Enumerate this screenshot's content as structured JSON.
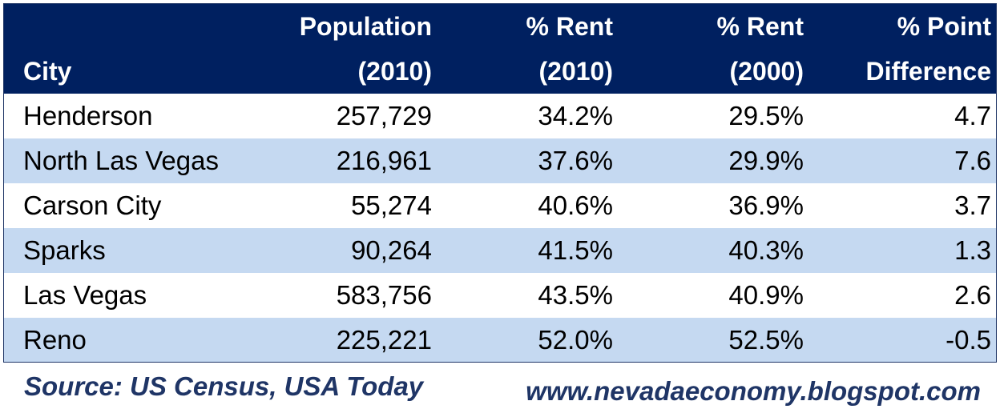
{
  "chart_data": {
    "type": "table",
    "columns": [
      {
        "line1": "",
        "line2": "City"
      },
      {
        "line1": "Population",
        "line2": "(2010)"
      },
      {
        "line1": "% Rent",
        "line2": "(2010)"
      },
      {
        "line1": "% Rent",
        "line2": "(2000)"
      },
      {
        "line1": "% Point",
        "line2": "Difference"
      }
    ],
    "rows": [
      [
        "Henderson",
        "257,729",
        "34.2%",
        "29.5%",
        "4.7"
      ],
      [
        "North Las Vegas",
        "216,961",
        "37.6%",
        "29.9%",
        "7.6"
      ],
      [
        "Carson City",
        "55,274",
        "40.6%",
        "36.9%",
        "3.7"
      ],
      [
        "Sparks",
        "90,264",
        "41.5%",
        "40.3%",
        "1.3"
      ],
      [
        "Las Vegas",
        "583,756",
        "43.5%",
        "40.9%",
        "2.6"
      ],
      [
        "Reno",
        "225,221",
        "52.0%",
        "52.5%",
        "-0.5"
      ]
    ]
  },
  "footer": {
    "source": "Source: US Census, USA Today",
    "website": "www.nevadaeconomy.blogspot.com"
  },
  "colors": {
    "header_bg": "#002060",
    "band_alt": "#c5d9f1",
    "footer_text": "#1f3566"
  }
}
